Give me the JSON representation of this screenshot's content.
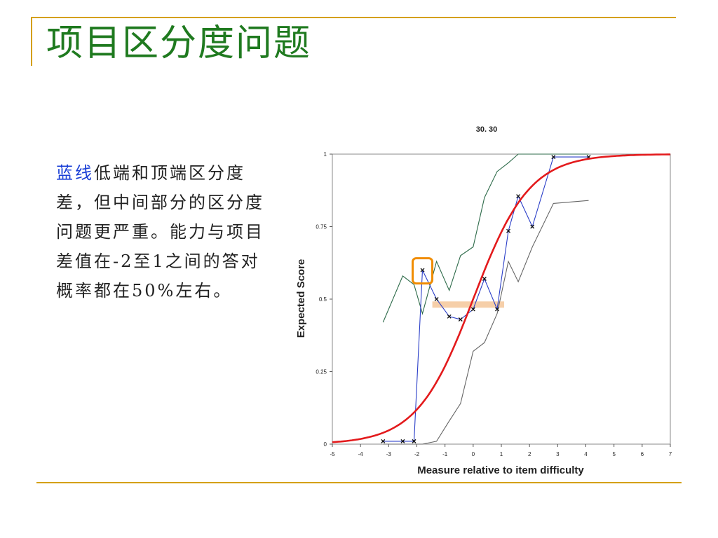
{
  "slide": {
    "title": "项目区分度问题",
    "highlight": "蓝线",
    "text_rest": "低端和顶端区分度差，但中间部分的区分度问题更严重。能力与项目差值在-2至1之间的答对概率都在50%左右。"
  },
  "chart_data": {
    "type": "line",
    "title": "30. 30",
    "xlabel": "Measure relative to item difficulty",
    "ylabel": "Expected Score",
    "xlim": [
      -5,
      7
    ],
    "ylim": [
      0,
      1
    ],
    "x_ticks": [
      "-5",
      "-4",
      "-3",
      "-2",
      "-1",
      "0",
      "1",
      "2",
      "3",
      "4",
      "5",
      "6",
      "7"
    ],
    "y_ticks": [
      "0",
      "0.25",
      "0.5",
      "0.75",
      "1"
    ],
    "series": [
      {
        "role": "model-curve",
        "color": "#e31a1c",
        "x": [
          -5,
          -4,
          -3,
          -2.5,
          -2,
          -1.5,
          -1,
          -0.5,
          0,
          0.5,
          1,
          1.5,
          2,
          2.5,
          3,
          4,
          5,
          6,
          7
        ],
        "values": [
          0.007,
          0.018,
          0.047,
          0.076,
          0.119,
          0.182,
          0.269,
          0.378,
          0.5,
          0.622,
          0.731,
          0.818,
          0.881,
          0.924,
          0.953,
          0.982,
          0.993,
          0.998,
          0.999
        ]
      },
      {
        "role": "observed",
        "color": "#2a3ec8",
        "marker": "x",
        "x": [
          -3.2,
          -2.5,
          -2.1,
          -1.8,
          -1.3,
          -0.85,
          -0.45,
          0,
          0.4,
          0.85,
          1.25,
          1.6,
          2.1,
          2.85,
          4.1
        ],
        "values": [
          0.01,
          0.01,
          0.01,
          0.6,
          0.5,
          0.44,
          0.43,
          0.465,
          0.57,
          0.465,
          0.735,
          0.855,
          0.75,
          0.99,
          0.99
        ]
      },
      {
        "role": "upper-band",
        "color": "#2e6b4a",
        "x": [
          -3.2,
          -2.5,
          -2.1,
          -1.8,
          -1.3,
          -0.85,
          -0.45,
          0,
          0.4,
          0.85,
          1.25,
          1.6,
          2.1,
          2.85,
          4.1
        ],
        "values": [
          0.42,
          0.58,
          0.55,
          0.45,
          0.63,
          0.53,
          0.65,
          0.68,
          0.85,
          0.94,
          0.97,
          1.0,
          1.0,
          1.0,
          1.0
        ]
      },
      {
        "role": "lower-band",
        "color": "#666666",
        "x": [
          -3.2,
          -2.5,
          -2.1,
          -1.8,
          -1.3,
          -0.85,
          -0.45,
          0,
          0.4,
          0.85,
          1.25,
          1.6,
          2.1,
          2.85,
          4.1
        ],
        "values": [
          0.0,
          0.0,
          0.0,
          0.0,
          0.01,
          0.08,
          0.14,
          0.32,
          0.35,
          0.45,
          0.63,
          0.56,
          0.68,
          0.83,
          0.84
        ]
      }
    ],
    "annotations": [
      {
        "type": "box",
        "color": "#f08c00",
        "x": -1.8,
        "y": 0.6
      },
      {
        "type": "band",
        "color": "#f5c79a",
        "x": [
          -1.45,
          1.1
        ],
        "y": 0.48
      }
    ]
  }
}
